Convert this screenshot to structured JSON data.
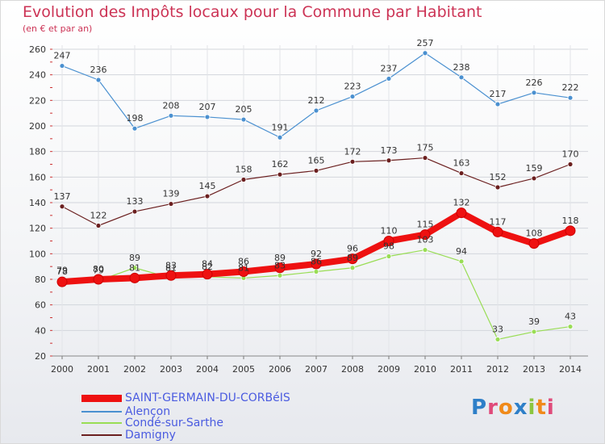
{
  "title": "Evolution des Impôts locaux pour la Commune par Habitant",
  "subtitle": "(en € et par an)",
  "logo": {
    "text": "Proxiti",
    "letters": [
      {
        "ch": "P",
        "color": "#2e7fc8"
      },
      {
        "ch": "r",
        "color": "#e04a7a"
      },
      {
        "ch": "o",
        "color": "#f08a1a"
      },
      {
        "ch": "x",
        "color": "#2e7fc8"
      },
      {
        "ch": "i",
        "color": "#8cc63f"
      },
      {
        "ch": "t",
        "color": "#f08a1a"
      },
      {
        "ch": "i",
        "color": "#e04a7a"
      }
    ]
  },
  "chart_data": {
    "type": "line",
    "title": "Evolution des Impôts locaux pour la Commune par Habitant",
    "subtitle": "(en € et par an)",
    "xlabel": "",
    "ylabel": "",
    "ylim": [
      20,
      260
    ],
    "yticks": [
      20,
      40,
      60,
      80,
      100,
      120,
      140,
      160,
      180,
      200,
      220,
      240,
      260
    ],
    "grid": true,
    "legend_position": "bottom-left",
    "x": [
      "2000",
      "2001",
      "2002",
      "2003",
      "2004",
      "2005",
      "2006",
      "2007",
      "2008",
      "2009",
      "2010",
      "2011",
      "2012",
      "2013",
      "2014"
    ],
    "series": [
      {
        "name": "SAINT-GERMAIN-DU-CORBéIS",
        "color": "#ee1111",
        "line_width": 8,
        "marker_radius": 6,
        "values": [
          78,
          80,
          81,
          83,
          84,
          86,
          89,
          92,
          96,
          110,
          115,
          132,
          117,
          108,
          118
        ],
        "labels": [
          "78",
          "80",
          "81",
          "83",
          "84",
          "86",
          "89",
          "92",
          "96",
          "110",
          "115",
          "132",
          "117",
          "108",
          "118"
        ]
      },
      {
        "name": "Alençon",
        "color": "#4a90d0",
        "line_width": 1.2,
        "marker_radius": 3,
        "values": [
          247,
          236,
          198,
          208,
          207,
          205,
          191,
          212,
          223,
          237,
          257,
          238,
          217,
          226,
          222
        ],
        "labels": [
          "247",
          "236",
          "198",
          "208",
          "207",
          "205",
          "191",
          "212",
          "223",
          "237",
          "257",
          "238",
          "217",
          "226",
          "222"
        ]
      },
      {
        "name": "Condé-sur-Sarthe",
        "color": "#99dd55",
        "line_width": 1.2,
        "marker_radius": 3,
        "values": [
          79,
          79,
          89,
          81,
          82,
          81,
          83,
          86,
          89,
          98,
          103,
          94,
          33,
          39,
          43
        ],
        "labels": [
          "79",
          "79",
          "89",
          "81",
          "82",
          "81",
          "83",
          "86",
          "89",
          "98",
          "103",
          "94",
          "33",
          "39",
          "43"
        ]
      },
      {
        "name": "Damigny",
        "color": "#6b1f1f",
        "line_width": 1.2,
        "marker_radius": 3,
        "values": [
          137,
          122,
          133,
          139,
          145,
          158,
          162,
          165,
          172,
          173,
          175,
          163,
          152,
          159,
          170
        ],
        "labels": [
          "137",
          "122",
          "133",
          "139",
          "145",
          "158",
          "162",
          "165",
          "172",
          "173",
          "175",
          "163",
          "152",
          "159",
          "170"
        ]
      }
    ]
  }
}
